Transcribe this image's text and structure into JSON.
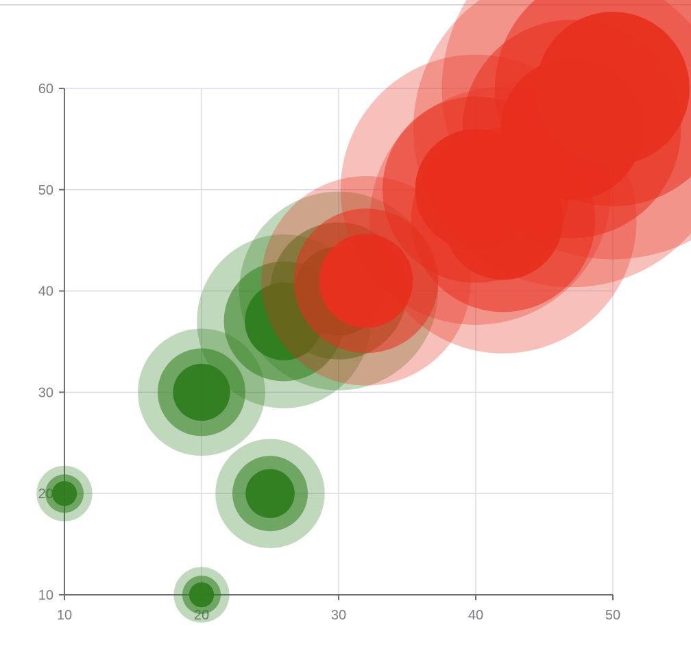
{
  "chart_data": {
    "type": "scatter",
    "title": "",
    "xlabel": "",
    "ylabel": "",
    "xlim": [
      10,
      50
    ],
    "ylim": [
      10,
      60
    ],
    "x_ticks": [
      10,
      20,
      30,
      40,
      50
    ],
    "y_ticks": [
      10,
      20,
      30,
      40,
      50,
      60
    ],
    "x_tick_labels": [
      "10",
      "20",
      "30",
      "40",
      "50"
    ],
    "y_tick_labels": [
      "10",
      "20",
      "30",
      "40",
      "50",
      "60"
    ],
    "grid": true,
    "legend": "none",
    "marker_style": "bubble with concentric translucent halos",
    "series": [
      {
        "color": "#2e7d1e",
        "points": [
          {
            "x": 10,
            "y": 20
          },
          {
            "x": 20,
            "y": 10
          },
          {
            "x": 20,
            "y": 30
          },
          {
            "x": 25,
            "y": 20
          },
          {
            "x": 26,
            "y": 37
          },
          {
            "x": 30,
            "y": 40
          }
        ]
      },
      {
        "color": "#e8301f",
        "points": [
          {
            "x": 32,
            "y": 41
          },
          {
            "x": 40,
            "y": 50
          },
          {
            "x": 42,
            "y": 47
          },
          {
            "x": 47,
            "y": 56
          },
          {
            "x": 50,
            "y": 60
          }
        ]
      }
    ],
    "colors": {
      "grid": "#dcdcec",
      "axis": "#6e6e78",
      "tick_text": "#7b7b85"
    }
  }
}
